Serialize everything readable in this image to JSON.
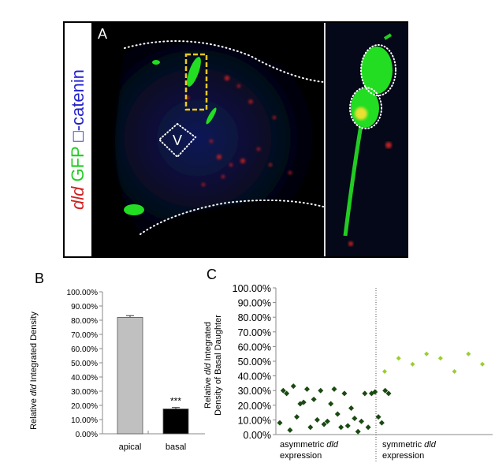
{
  "panel_a": {
    "letter": "A",
    "side_label": {
      "dld": "dld",
      "gfp": "GFP",
      "catenin": "□-catenin"
    },
    "v_marker": "V",
    "colors": {
      "dld": "#d22020",
      "gfp": "#22cc22",
      "catenin": "#2222cc",
      "box": "#f2c81e"
    }
  },
  "panel_b": {
    "letter": "B",
    "ylabel_prefix": "Relative ",
    "ylabel_italic": "dld",
    "ylabel_suffix": " Integrated Density",
    "significance": "***",
    "colors": {
      "apical": "#c0c0c0",
      "basal": "#000000"
    }
  },
  "panel_c": {
    "letter": "C",
    "ylabel_line1_prefix": "Relative ",
    "ylabel_line1_italic": "dld",
    "ylabel_line1_suffix": " Integrated",
    "ylabel_line2": "Density of Basal Daughter",
    "group1_line1_prefix": "asymmetric ",
    "group1_line1_italic": "dld",
    "group1_line2": "expression",
    "group2_line1_prefix": "symmetric ",
    "group2_line1_italic": "dld",
    "group2_line2": "expression",
    "colors": {
      "asymmetric": "#1a4a12",
      "symmetric": "#9acd32"
    }
  },
  "chart_data": [
    {
      "type": "bar",
      "categories": [
        "apical",
        "basal"
      ],
      "values": [
        82.0,
        17.5
      ],
      "errors": [
        1.2,
        1.0
      ],
      "ylim": [
        0,
        100
      ],
      "yticks": [
        "0.00%",
        "10.00%",
        "20.00%",
        "30.00%",
        "40.00%",
        "50.00%",
        "60.00%",
        "70.00%",
        "80.00%",
        "90.00%",
        "100.00%"
      ],
      "ylabel": "Relative dld Integrated Density",
      "annotation": "***"
    },
    {
      "type": "scatter",
      "ylim": [
        0,
        100
      ],
      "yticks": [
        "0.00%",
        "10.00%",
        "20.00%",
        "30.00%",
        "40.00%",
        "50.00%",
        "60.00%",
        "70.00%",
        "80.00%",
        "90.00%",
        "100.00%"
      ],
      "ylabel": "Relative dld Integrated Density of Basal Daughter",
      "series": [
        {
          "name": "asymmetric dld expression",
          "x": [
            1,
            2,
            3,
            4,
            5,
            6,
            7,
            8,
            9,
            10,
            11,
            12,
            13,
            14,
            15,
            16,
            17,
            18,
            19,
            20,
            21,
            22,
            23,
            24,
            25,
            26,
            27,
            28,
            29,
            30,
            31,
            32,
            33
          ],
          "y": [
            8,
            30,
            28,
            3,
            33,
            12,
            21,
            22,
            31,
            5,
            24,
            10,
            30,
            7,
            9,
            21,
            31,
            14,
            5,
            28,
            6,
            18,
            11,
            2,
            9,
            28,
            5,
            28,
            29,
            12,
            8,
            30,
            28
          ]
        },
        {
          "name": "symmetric dld expression",
          "x": [
            1,
            2,
            3,
            4,
            5,
            6,
            7,
            8
          ],
          "y": [
            43,
            52,
            48,
            55,
            52,
            43,
            55,
            48
          ]
        }
      ]
    }
  ]
}
